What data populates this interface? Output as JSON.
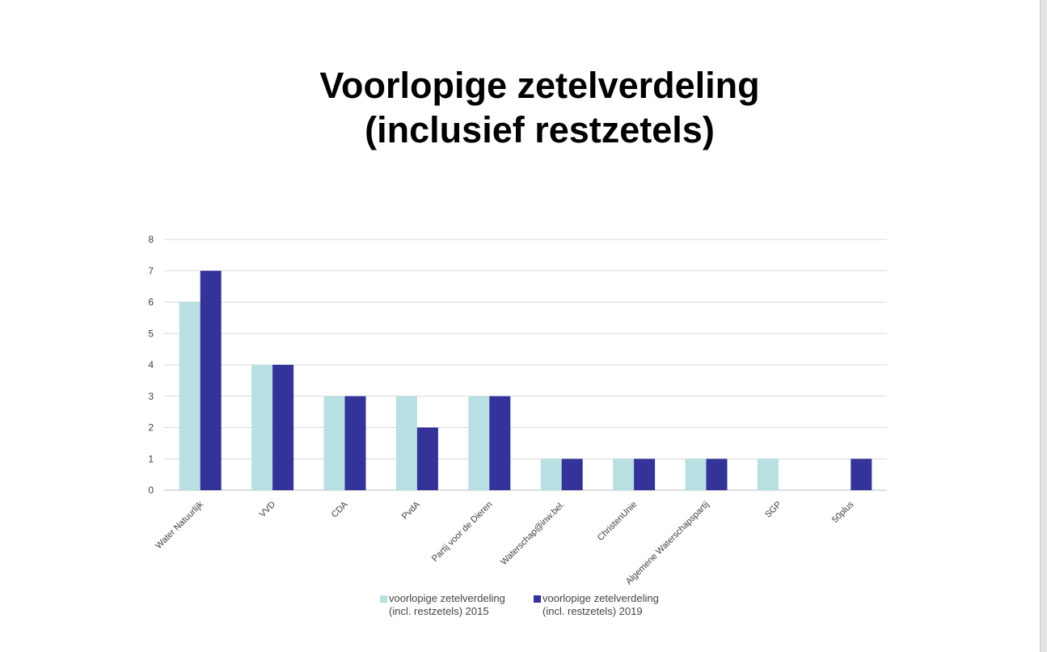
{
  "chart_data": {
    "type": "bar",
    "title_lines": [
      "Voorlopige zetelverdeling",
      "(inclusief restzetels)"
    ],
    "categories": [
      "Water Natuurlijk",
      "VVD",
      "CDA",
      "PvdA",
      "Partij voor de Dieren",
      "Waterschap@inw.bel.",
      "ChristenUnie",
      "Algemene Waterschapspartij",
      "SGP",
      "50plus"
    ],
    "series": [
      {
        "name": "voorlopige zetelverdeling (incl. restzetels) 2015",
        "name_lines": [
          "voorlopige zetelverdeling",
          "(incl. restzetels) 2015"
        ],
        "color": "#b8dfe1",
        "values": [
          6,
          4,
          3,
          3,
          3,
          1,
          1,
          1,
          1,
          0
        ]
      },
      {
        "name": "voorlopige zetelverdeling (incl. restzetels) 2019",
        "name_lines": [
          "voorlopige zetelverdeling",
          "(incl. restzetels) 2019"
        ],
        "color": "#33339a",
        "values": [
          7,
          4,
          3,
          2,
          3,
          1,
          1,
          1,
          0,
          1
        ]
      }
    ],
    "ylim": [
      0,
      8
    ],
    "yticks": [
      "0",
      "1",
      "2",
      "3",
      "4",
      "5",
      "6",
      "7",
      "8"
    ],
    "grid": true,
    "legend_position": "bottom"
  }
}
